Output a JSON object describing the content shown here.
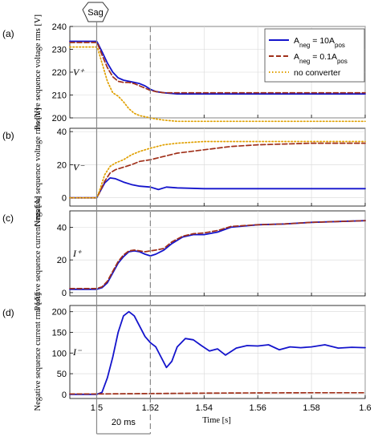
{
  "chart_data": [
    {
      "type": "line",
      "panel_label": "(a)",
      "ylabel": "Positive sequence voltage rms [V]",
      "symbol": "V⁺",
      "ylim": [
        200,
        240
      ],
      "yticks": [
        200,
        210,
        220,
        230,
        240
      ],
      "xlim": [
        1.49,
        1.6
      ],
      "series": [
        {
          "name": "A_neg = 10A_pos",
          "color": "#1414cc",
          "style": "solid",
          "x": [
            1.49,
            1.495,
            1.5,
            1.5005,
            1.502,
            1.504,
            1.506,
            1.508,
            1.51,
            1.512,
            1.514,
            1.516,
            1.518,
            1.52,
            1.522,
            1.525,
            1.53,
            1.54,
            1.55,
            1.56,
            1.58,
            1.6
          ],
          "y": [
            233.5,
            233.5,
            233.5,
            232.5,
            229,
            224,
            220,
            217.5,
            216.5,
            216,
            215.5,
            215,
            214,
            212.5,
            211.5,
            211,
            210.5,
            210.5,
            210.5,
            210.5,
            210.5,
            210.5
          ]
        },
        {
          "name": "A_neg = 0.1A_pos",
          "color": "#a0301a",
          "style": "dashed",
          "x": [
            1.49,
            1.495,
            1.5,
            1.5005,
            1.502,
            1.504,
            1.506,
            1.508,
            1.51,
            1.512,
            1.514,
            1.516,
            1.518,
            1.52,
            1.522,
            1.525,
            1.53,
            1.54,
            1.55,
            1.56,
            1.58,
            1.6
          ],
          "y": [
            233,
            233,
            233,
            232,
            227.5,
            222,
            218,
            216,
            215.5,
            215.5,
            215,
            214,
            213,
            212,
            211.5,
            211,
            211,
            211,
            211,
            211,
            211,
            211
          ]
        },
        {
          "name": "no converter",
          "color": "#e0a000",
          "style": "dotted",
          "x": [
            1.49,
            1.495,
            1.5,
            1.5005,
            1.502,
            1.504,
            1.506,
            1.508,
            1.51,
            1.512,
            1.514,
            1.516,
            1.518,
            1.52,
            1.522,
            1.525,
            1.53,
            1.54,
            1.55,
            1.56,
            1.58,
            1.6
          ],
          "y": [
            231,
            231,
            231,
            230,
            224,
            216,
            211,
            209.5,
            207,
            204,
            202,
            201,
            200.5,
            200,
            199.5,
            199,
            198.5,
            198.5,
            198.5,
            198.5,
            198.5,
            198.5
          ]
        }
      ]
    },
    {
      "type": "line",
      "panel_label": "(b)",
      "ylabel": "Negative sequence voltage rms [V]",
      "symbol": "V⁻",
      "ylim": [
        -5,
        42
      ],
      "yticks": [
        0,
        20,
        40
      ],
      "xlim": [
        1.49,
        1.6
      ],
      "series": [
        {
          "name": "A_neg = 10A_pos",
          "color": "#1414cc",
          "style": "solid",
          "x": [
            1.49,
            1.5,
            1.501,
            1.503,
            1.505,
            1.507,
            1.51,
            1.513,
            1.516,
            1.52,
            1.523,
            1.526,
            1.53,
            1.54,
            1.55,
            1.56,
            1.58,
            1.6
          ],
          "y": [
            0,
            0,
            3,
            9,
            12,
            11.5,
            9.5,
            8,
            7,
            6.5,
            5,
            6.5,
            6,
            5.5,
            5.5,
            5.5,
            5.5,
            5.5
          ]
        },
        {
          "name": "A_neg = 0.1A_pos",
          "color": "#a0301a",
          "style": "dashed",
          "x": [
            1.49,
            1.5,
            1.501,
            1.503,
            1.505,
            1.507,
            1.51,
            1.513,
            1.516,
            1.52,
            1.525,
            1.53,
            1.54,
            1.55,
            1.56,
            1.57,
            1.58,
            1.6
          ],
          "y": [
            0,
            0,
            3,
            10,
            15,
            17,
            18.5,
            20,
            22,
            23,
            25,
            27,
            29,
            31,
            32,
            32.5,
            33,
            33
          ]
        },
        {
          "name": "no converter",
          "color": "#e0a000",
          "style": "dotted",
          "x": [
            1.49,
            1.5,
            1.501,
            1.503,
            1.505,
            1.507,
            1.51,
            1.513,
            1.516,
            1.52,
            1.525,
            1.53,
            1.54,
            1.55,
            1.56,
            1.58,
            1.6
          ],
          "y": [
            0,
            0,
            4,
            14,
            19,
            21,
            23,
            26,
            28,
            30,
            32,
            33,
            34,
            34,
            34,
            34,
            34
          ]
        }
      ]
    },
    {
      "type": "line",
      "panel_label": "(c)",
      "ylabel": "Positive sequence current rms [A]",
      "symbol": "I⁺",
      "ylim": [
        -2,
        50
      ],
      "yticks": [
        0,
        20,
        40
      ],
      "xlim": [
        1.49,
        1.6
      ],
      "series": [
        {
          "name": "A_neg = 10A_pos",
          "color": "#1414cc",
          "style": "solid",
          "x": [
            1.49,
            1.5,
            1.502,
            1.504,
            1.506,
            1.508,
            1.51,
            1.512,
            1.514,
            1.516,
            1.518,
            1.52,
            1.522,
            1.525,
            1.528,
            1.532,
            1.536,
            1.54,
            1.545,
            1.55,
            1.56,
            1.57,
            1.58,
            1.6
          ],
          "y": [
            2,
            2,
            3,
            6,
            12,
            18,
            22,
            25,
            25.5,
            25,
            23.5,
            22.5,
            23.5,
            26,
            30,
            34,
            35.5,
            35.5,
            37,
            40,
            41.5,
            42,
            43,
            44
          ]
        },
        {
          "name": "A_neg = 0.1A_pos",
          "color": "#a0301a",
          "style": "dashed",
          "x": [
            1.49,
            1.5,
            1.502,
            1.504,
            1.506,
            1.508,
            1.51,
            1.512,
            1.514,
            1.516,
            1.518,
            1.52,
            1.522,
            1.525,
            1.528,
            1.532,
            1.536,
            1.54,
            1.545,
            1.55,
            1.56,
            1.57,
            1.58,
            1.6
          ],
          "y": [
            2.5,
            2.5,
            3.5,
            7,
            13,
            19,
            23,
            25.5,
            26,
            25.5,
            25,
            25.5,
            26,
            27,
            31,
            34.5,
            36,
            36.5,
            38,
            40.5,
            41.5,
            42,
            43,
            44
          ]
        }
      ]
    },
    {
      "type": "line",
      "panel_label": "(d)",
      "ylabel": "Negative sequence current rms [A]",
      "symbol": "I⁻",
      "ylim": [
        -10,
        215
      ],
      "yticks": [
        0,
        50,
        100,
        150,
        200
      ],
      "xlim": [
        1.49,
        1.6
      ],
      "series": [
        {
          "name": "A_neg = 10A_pos",
          "color": "#1414cc",
          "style": "solid",
          "x": [
            1.49,
            1.5,
            1.502,
            1.504,
            1.506,
            1.508,
            1.51,
            1.512,
            1.514,
            1.516,
            1.518,
            1.52,
            1.522,
            1.524,
            1.526,
            1.528,
            1.53,
            1.533,
            1.536,
            1.539,
            1.542,
            1.545,
            1.548,
            1.552,
            1.556,
            1.56,
            1.564,
            1.568,
            1.572,
            1.576,
            1.58,
            1.585,
            1.59,
            1.595,
            1.6
          ],
          "y": [
            0,
            0,
            5,
            40,
            90,
            150,
            190,
            200,
            190,
            165,
            140,
            125,
            115,
            90,
            65,
            80,
            115,
            135,
            132,
            118,
            105,
            110,
            95,
            112,
            118,
            117,
            120,
            108,
            115,
            113,
            115,
            120,
            112,
            114,
            113
          ]
        },
        {
          "name": "A_neg = 0.1A_pos",
          "color": "#a0301a",
          "style": "dashed",
          "x": [
            1.49,
            1.5,
            1.52,
            1.54,
            1.56,
            1.58,
            1.6
          ],
          "y": [
            1,
            1,
            2,
            3,
            3.5,
            4,
            4
          ]
        }
      ]
    }
  ],
  "xaxis": {
    "label": "Time [s]",
    "ticks": [
      1.5,
      1.52,
      1.54,
      1.56,
      1.58,
      1.6
    ],
    "ticklabels": [
      "1.5",
      "1.52",
      "1.54",
      "1.56",
      "1.58",
      "1.6"
    ]
  },
  "legend": {
    "placement": "top-right",
    "entries": [
      {
        "pre": "A",
        "sub1": "neg",
        "mid": " = 10A",
        "sub2": "pos",
        "color": "#1414cc",
        "style": "solid"
      },
      {
        "pre": "A",
        "sub1": "neg",
        "mid": " = 0.1A",
        "sub2": "pos",
        "color": "#a0301a",
        "style": "dashed"
      },
      {
        "pre": "no converter",
        "sub1": "",
        "mid": "",
        "sub2": "",
        "color": "#e0a000",
        "style": "dotted"
      }
    ]
  },
  "annotations": {
    "sag_label": "Sag",
    "sag_time": 1.5,
    "end_time": 1.52,
    "duration_label": "20 ms"
  },
  "grid": true
}
